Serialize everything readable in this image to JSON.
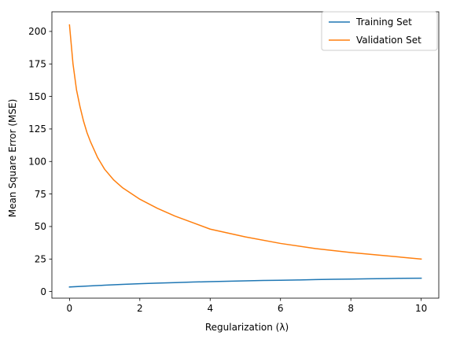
{
  "chart_data": {
    "type": "line",
    "xlabel": "Regularization (λ)",
    "ylabel": "Mean Square Error (MSE)",
    "xlim": [
      -0.5,
      10.5
    ],
    "ylim": [
      -5.08,
      215.08
    ],
    "xticks": [
      0,
      2,
      4,
      6,
      8,
      10
    ],
    "xtick_labels": [
      "0",
      "2",
      "4",
      "6",
      "8",
      "10"
    ],
    "yticks": [
      0,
      25,
      50,
      75,
      100,
      125,
      150,
      175,
      200
    ],
    "ytick_labels": [
      "0",
      "25",
      "50",
      "75",
      "100",
      "125",
      "150",
      "175",
      "200"
    ],
    "grid": false,
    "legend_position": "top-right",
    "series": [
      {
        "name": "Training Set",
        "color": "#1f77b4",
        "x": [
          0,
          0.5,
          1,
          1.5,
          2,
          2.5,
          3,
          3.5,
          4,
          4.5,
          5,
          5.5,
          6,
          6.5,
          7,
          7.5,
          8,
          8.5,
          9,
          9.5,
          10
        ],
        "y": [
          3.5,
          4.2,
          4.9,
          5.5,
          6.0,
          6.5,
          6.9,
          7.3,
          7.6,
          7.9,
          8.2,
          8.5,
          8.7,
          8.9,
          9.2,
          9.4,
          9.6,
          9.8,
          10.0,
          10.2,
          10.3
        ]
      },
      {
        "name": "Validation Set",
        "color": "#ff7f0e",
        "x": [
          0,
          0.05,
          0.1,
          0.2,
          0.3,
          0.4,
          0.5,
          0.6,
          0.8,
          1.0,
          1.25,
          1.5,
          2.0,
          2.5,
          3.0,
          3.5,
          4.0,
          5.0,
          6.0,
          7.0,
          8.0,
          9.0,
          10.0
        ],
        "y": [
          205,
          190,
          175,
          155,
          142,
          131,
          122,
          115,
          103,
          94,
          86,
          80,
          71,
          64,
          58,
          53,
          48,
          42,
          37,
          33,
          30,
          27.5,
          25
        ]
      }
    ]
  }
}
